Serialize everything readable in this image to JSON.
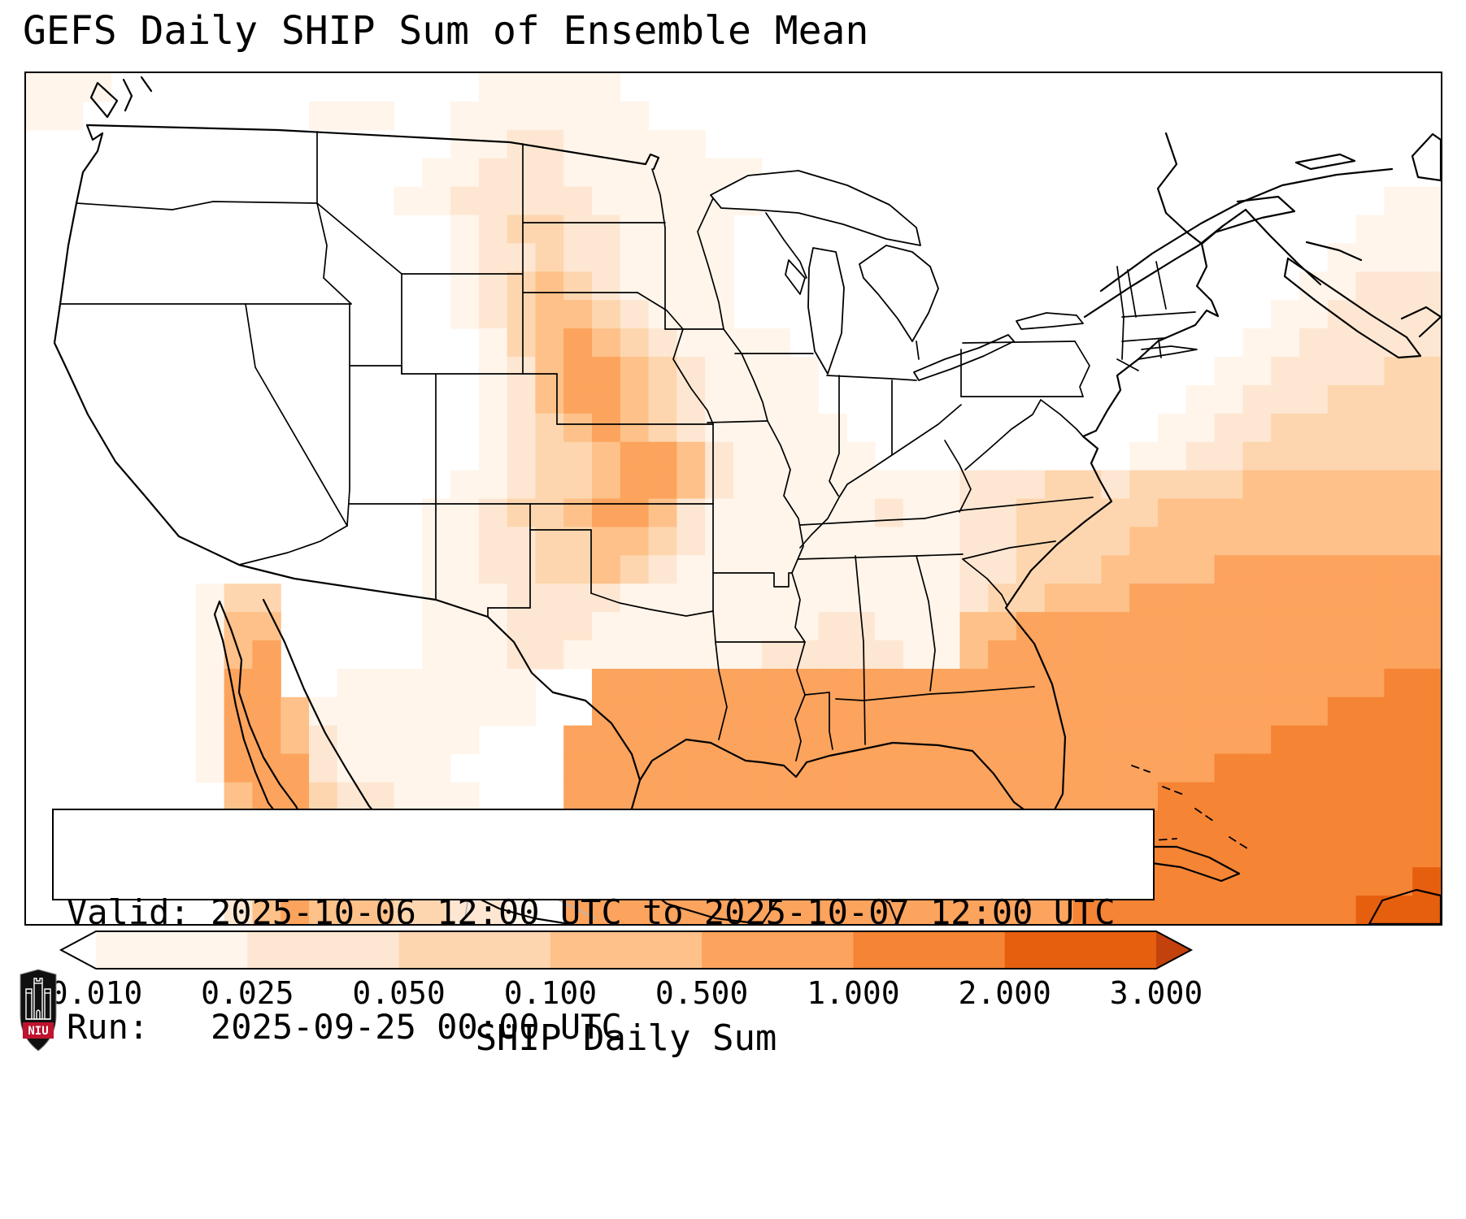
{
  "title": "GEFS Daily SHIP Sum of Ensemble Mean",
  "annotation": {
    "line1": "Valid: 2025-10-06 12:00 UTC to 2025-10-07 12:00 UTC",
    "line2": "Run:   2025-09-25 00:00 UTC"
  },
  "logo": {
    "text": "NIU",
    "shield_color": "#101010",
    "band_color": "#bf132e"
  },
  "chart_data": {
    "type": "heatmap",
    "title": "GEFS Daily SHIP Sum of Ensemble Mean",
    "region": "Continental United States, Gulf of Mexico, western Atlantic, northern Mexico and Caribbean",
    "colorbar": {
      "label": "SHIP Daily Sum",
      "ticks": [
        "0.010",
        "0.025",
        "0.050",
        "0.100",
        "0.500",
        "1.000",
        "2.000",
        "3.000"
      ],
      "segment_colors": [
        "#fff5eb",
        "#fee7d2",
        "#fdd6af",
        "#fdc189",
        "#fca35d",
        "#f58434",
        "#e65f0e"
      ],
      "under_color": "#ffffff",
      "over_color": "#c2410c",
      "orientation": "horizontal"
    },
    "heatmap": {
      "cols": 50,
      "rows": 30,
      "level_meaning": "0 = below 0.010 (white); levels 1-7 fill the successive intervals between tick values 0.010-3.000; colorbar arrows show under/over range",
      "levels": {
        "0": "#ffffff",
        "1": "#fff5eb",
        "2": "#fee7d2",
        "3": "#fdd6af",
        "4": "#fdc189",
        "5": "#fca35d",
        "6": "#f58434",
        "7": "#e65f0e"
      },
      "grid_rows": [
        "11100000000000001111100000000000000000000000000000",
        "11000000001110011111110000000000000000000000000000",
        "00000000000000011221111100000000000000000000000000",
        "00000000000000112221111111000000000000000000000000",
        "00000000000001122222111111000000000000000000000011",
        "00000000000000012332211110000000000000000000000111",
        "00000000000000012232211110000000000000000000001111",
        "00000000000000012343211110000000000000000000011222",
        "00000000000000012344321110000000000000000000112222",
        "00000000000000001345432111100000000000000001122222",
        "00000000000000001245543211110000000000000011222233",
        "00000000000000001245543211110000000000000112223333",
        "00000000000000001234543211111000000000001122333333",
        "00000000000000001233455421111100000000011223333333",
        "00000000000000011233455421111111122233233334444444",
        "00000000000000112334554211111121122333334444444444",
        "00000000000000112233443211111111122333344444444444",
        "00000000000000112233432111111111122333444455555555",
        "00000013300000111222211111111111123344455555555555",
        "00000014400000111222111111112211144555555555555555",
        "00000014500000111221111111222221145555555555555555",
        "00000015500111111100555555555555555555555555555566",
        "00000015541111111100555555555555555555555555556666",
        "00000015542111110005555555555555555555555555666666",
        "00000015552111100005555555555555555555555566666666",
        "00000004553221110005555555555555555555556666666666",
        "00000004553322111005555555555555555555566666666666",
        "00000004554432211005555555555555555555666666666666",
        "00000003554443221105555555555555555556666666666667",
        "00000002454443322105555555555555555556666666666777"
      ]
    }
  }
}
